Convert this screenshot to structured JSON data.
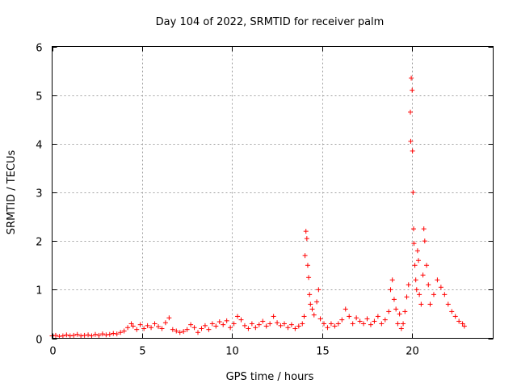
{
  "chart_data": {
    "type": "scatter",
    "title": "Day 104 of 2022, SRMTID for receiver palm",
    "xlabel": "GPS time / hours",
    "ylabel": "SRMTID / TECUs",
    "xlim": [
      0,
      24.5
    ],
    "ylim": [
      0,
      6
    ],
    "xticks": [
      0,
      5,
      10,
      15,
      20
    ],
    "yticks": [
      0,
      1,
      2,
      3,
      4,
      5,
      6
    ],
    "xtick_labels": [
      "0",
      "5",
      "10",
      "15",
      "20"
    ],
    "ytick_labels": [
      "0",
      "1",
      "2",
      "3",
      "4",
      "5",
      "6"
    ],
    "grid": true,
    "marker": "plus",
    "series": [
      {
        "name": "SRMTID",
        "color": "#ff0000",
        "points": [
          [
            0.0,
            0.05
          ],
          [
            0.2,
            0.06
          ],
          [
            0.4,
            0.04
          ],
          [
            0.6,
            0.05
          ],
          [
            0.8,
            0.07
          ],
          [
            1.0,
            0.05
          ],
          [
            1.2,
            0.06
          ],
          [
            1.4,
            0.08
          ],
          [
            1.6,
            0.05
          ],
          [
            1.8,
            0.06
          ],
          [
            2.0,
            0.07
          ],
          [
            2.2,
            0.05
          ],
          [
            2.4,
            0.08
          ],
          [
            2.6,
            0.06
          ],
          [
            2.8,
            0.09
          ],
          [
            3.0,
            0.07
          ],
          [
            3.2,
            0.08
          ],
          [
            3.4,
            0.1
          ],
          [
            3.6,
            0.09
          ],
          [
            3.8,
            0.12
          ],
          [
            4.0,
            0.15
          ],
          [
            4.2,
            0.22
          ],
          [
            4.4,
            0.3
          ],
          [
            4.5,
            0.25
          ],
          [
            4.7,
            0.18
          ],
          [
            4.9,
            0.28
          ],
          [
            5.1,
            0.2
          ],
          [
            5.3,
            0.26
          ],
          [
            5.5,
            0.22
          ],
          [
            5.7,
            0.3
          ],
          [
            5.9,
            0.24
          ],
          [
            6.1,
            0.2
          ],
          [
            6.3,
            0.32
          ],
          [
            6.5,
            0.42
          ],
          [
            6.7,
            0.18
          ],
          [
            6.9,
            0.15
          ],
          [
            7.1,
            0.12
          ],
          [
            7.3,
            0.14
          ],
          [
            7.5,
            0.18
          ],
          [
            7.7,
            0.28
          ],
          [
            7.9,
            0.22
          ],
          [
            8.1,
            0.12
          ],
          [
            8.3,
            0.2
          ],
          [
            8.5,
            0.26
          ],
          [
            8.7,
            0.18
          ],
          [
            8.9,
            0.3
          ],
          [
            9.1,
            0.25
          ],
          [
            9.3,
            0.34
          ],
          [
            9.5,
            0.28
          ],
          [
            9.7,
            0.36
          ],
          [
            9.9,
            0.22
          ],
          [
            10.1,
            0.3
          ],
          [
            10.3,
            0.45
          ],
          [
            10.5,
            0.38
          ],
          [
            10.7,
            0.26
          ],
          [
            10.9,
            0.2
          ],
          [
            11.1,
            0.3
          ],
          [
            11.3,
            0.22
          ],
          [
            11.5,
            0.28
          ],
          [
            11.7,
            0.35
          ],
          [
            11.9,
            0.25
          ],
          [
            12.1,
            0.3
          ],
          [
            12.3,
            0.45
          ],
          [
            12.5,
            0.32
          ],
          [
            12.7,
            0.26
          ],
          [
            12.9,
            0.3
          ],
          [
            13.1,
            0.22
          ],
          [
            13.3,
            0.28
          ],
          [
            13.5,
            0.2
          ],
          [
            13.7,
            0.25
          ],
          [
            13.9,
            0.3
          ],
          [
            14.0,
            0.45
          ],
          [
            14.05,
            1.7
          ],
          [
            14.1,
            2.2
          ],
          [
            14.15,
            2.05
          ],
          [
            14.2,
            1.5
          ],
          [
            14.25,
            1.25
          ],
          [
            14.3,
            0.9
          ],
          [
            14.35,
            0.7
          ],
          [
            14.45,
            0.6
          ],
          [
            14.55,
            0.48
          ],
          [
            14.7,
            0.75
          ],
          [
            14.8,
            1.0
          ],
          [
            14.9,
            0.4
          ],
          [
            15.1,
            0.3
          ],
          [
            15.3,
            0.22
          ],
          [
            15.5,
            0.3
          ],
          [
            15.7,
            0.25
          ],
          [
            15.9,
            0.3
          ],
          [
            16.1,
            0.38
          ],
          [
            16.3,
            0.6
          ],
          [
            16.5,
            0.45
          ],
          [
            16.7,
            0.3
          ],
          [
            16.9,
            0.42
          ],
          [
            17.1,
            0.35
          ],
          [
            17.3,
            0.3
          ],
          [
            17.5,
            0.4
          ],
          [
            17.7,
            0.28
          ],
          [
            17.9,
            0.35
          ],
          [
            18.1,
            0.45
          ],
          [
            18.3,
            0.3
          ],
          [
            18.5,
            0.38
          ],
          [
            18.7,
            0.55
          ],
          [
            18.8,
            1.0
          ],
          [
            18.9,
            1.2
          ],
          [
            19.0,
            0.8
          ],
          [
            19.1,
            0.6
          ],
          [
            19.2,
            0.3
          ],
          [
            19.3,
            0.5
          ],
          [
            19.4,
            0.2
          ],
          [
            19.5,
            0.3
          ],
          [
            19.6,
            0.55
          ],
          [
            19.7,
            0.85
          ],
          [
            19.8,
            1.1
          ],
          [
            19.9,
            4.65
          ],
          [
            19.92,
            4.05
          ],
          [
            19.95,
            5.35
          ],
          [
            20.0,
            5.1
          ],
          [
            20.02,
            3.85
          ],
          [
            20.05,
            3.0
          ],
          [
            20.08,
            2.25
          ],
          [
            20.1,
            1.95
          ],
          [
            20.15,
            1.5
          ],
          [
            20.2,
            1.2
          ],
          [
            20.25,
            1.0
          ],
          [
            20.3,
            1.8
          ],
          [
            20.35,
            1.6
          ],
          [
            20.4,
            0.9
          ],
          [
            20.5,
            0.7
          ],
          [
            20.6,
            1.3
          ],
          [
            20.65,
            2.25
          ],
          [
            20.7,
            2.0
          ],
          [
            20.8,
            1.5
          ],
          [
            20.9,
            1.1
          ],
          [
            21.0,
            0.7
          ],
          [
            21.2,
            0.9
          ],
          [
            21.4,
            1.2
          ],
          [
            21.6,
            1.05
          ],
          [
            21.8,
            0.9
          ],
          [
            22.0,
            0.7
          ],
          [
            22.2,
            0.55
          ],
          [
            22.4,
            0.45
          ],
          [
            22.6,
            0.35
          ],
          [
            22.8,
            0.3
          ],
          [
            22.9,
            0.25
          ]
        ]
      }
    ]
  }
}
